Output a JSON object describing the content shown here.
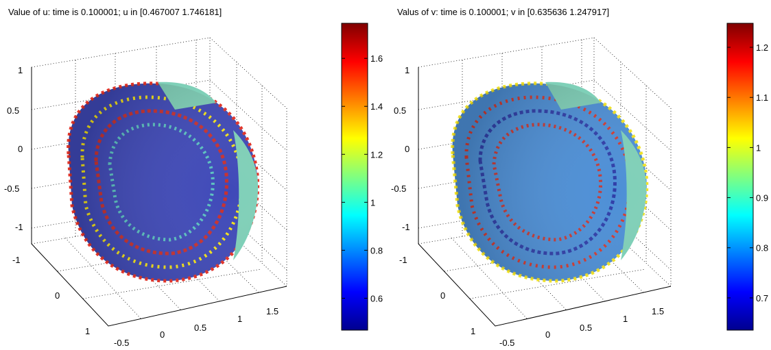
{
  "chart_data": [
    {
      "type": "heatmap",
      "title": "Value of u: time is 0.100001;    u in [0.467007   1.746181]",
      "colormap": "jet",
      "color_range": [
        0.467007,
        1.746181
      ],
      "colorbar_ticks": [
        "0.6",
        "0.8",
        "1",
        "1.2",
        "1.4",
        "1.6"
      ],
      "colorbar_values": [
        0.6,
        0.8,
        1.0,
        1.2,
        1.4,
        1.6
      ],
      "z_ticks": [
        "-1",
        "-0.5",
        "0",
        "0.5",
        "1"
      ],
      "y_ticks": [
        "-1",
        "0",
        "1"
      ],
      "x_ticks": [
        "-0.5",
        "0",
        "0.5",
        "1",
        "1.5"
      ],
      "grid": true
    },
    {
      "type": "heatmap",
      "title": "Valus of v: time is 0.100001;    v in [0.635636   1.247917]",
      "colormap": "jet",
      "color_range": [
        0.635636,
        1.247917
      ],
      "colorbar_ticks": [
        "0.7",
        "0.8",
        "0.9",
        "1",
        "1.1",
        "1.2"
      ],
      "colorbar_values": [
        0.7,
        0.8,
        0.9,
        1.0,
        1.1,
        1.2
      ],
      "z_ticks": [
        "-1",
        "-0.5",
        "0",
        "0.5",
        "1"
      ],
      "y_ticks": [
        "-1",
        "0",
        "1"
      ],
      "x_ticks": [
        "-0.5",
        "0",
        "0.5",
        "1",
        "1.5"
      ],
      "grid": true
    }
  ]
}
